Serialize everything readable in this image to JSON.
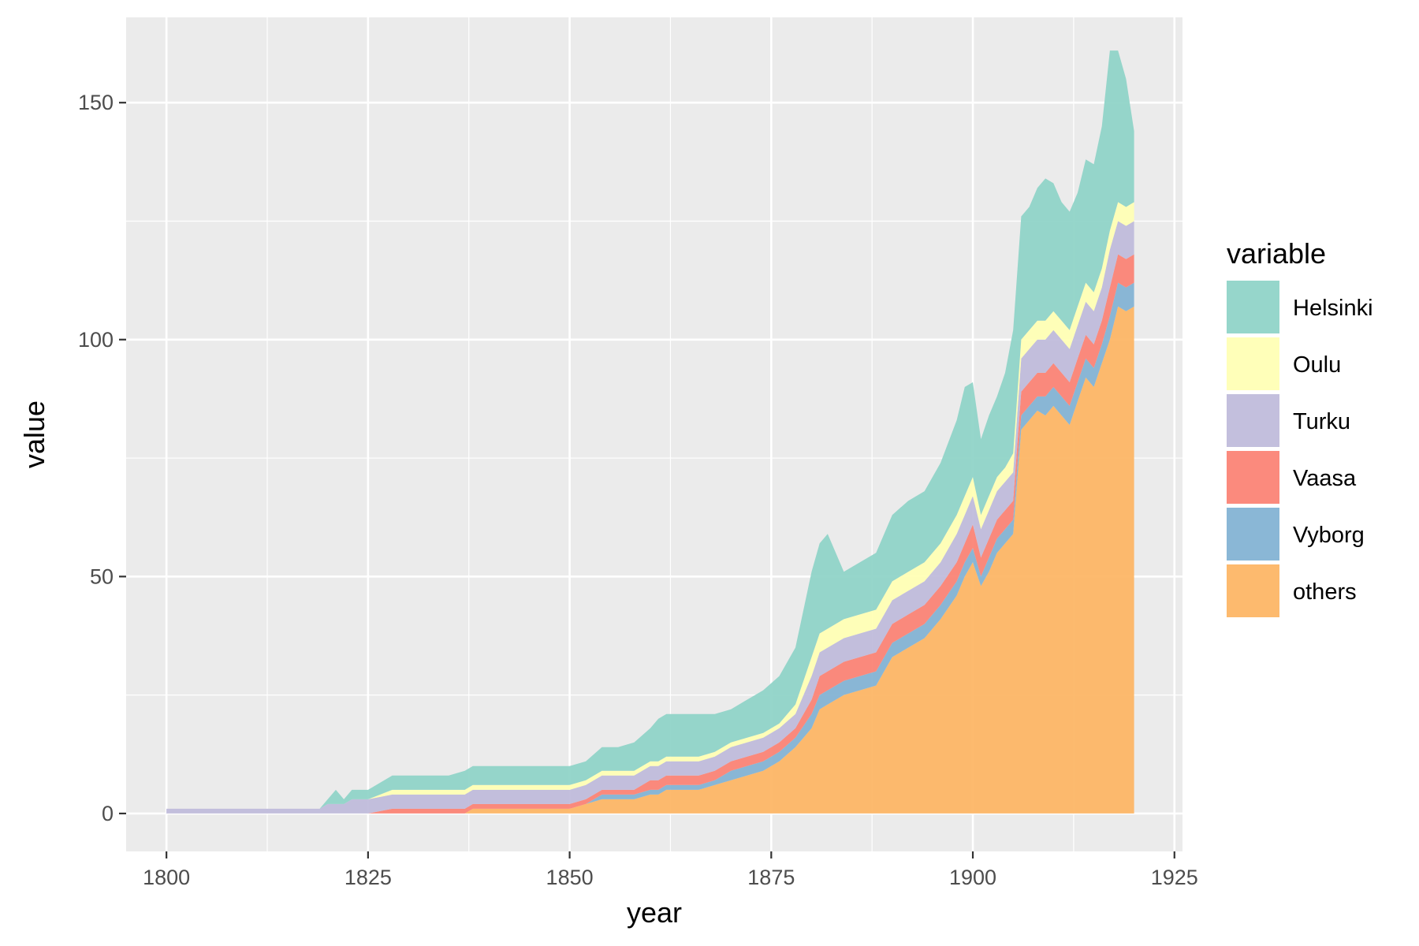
{
  "chart_data": {
    "type": "area",
    "stacking": "stacked",
    "xlabel": "year",
    "ylabel": "value",
    "xlim": [
      1795,
      1926
    ],
    "ylim": [
      -8,
      168
    ],
    "x_ticks": [
      1800,
      1825,
      1850,
      1875,
      1900,
      1925
    ],
    "y_ticks": [
      0,
      50,
      100,
      150
    ],
    "grid": true,
    "legend": {
      "title": "variable",
      "position": "right"
    },
    "stack_order_top_to_bottom": [
      "Helsinki",
      "Oulu",
      "Turku",
      "Vaasa",
      "Vyborg",
      "others"
    ],
    "colors": {
      "Helsinki": "#8dd3c7",
      "Oulu": "#ffffb3",
      "Turku": "#bebada",
      "Vaasa": "#fb8072",
      "Vyborg": "#80b1d3",
      "others": "#fdb462"
    },
    "x": [
      1800,
      1805,
      1810,
      1815,
      1819,
      1820,
      1821,
      1822,
      1823,
      1825,
      1828,
      1830,
      1833,
      1835,
      1837,
      1838,
      1840,
      1842,
      1844,
      1846,
      1848,
      1850,
      1852,
      1854,
      1856,
      1858,
      1860,
      1861,
      1862,
      1864,
      1866,
      1868,
      1870,
      1872,
      1874,
      1876,
      1878,
      1880,
      1881,
      1882,
      1884,
      1886,
      1888,
      1890,
      1892,
      1894,
      1896,
      1898,
      1899,
      1900,
      1901,
      1902,
      1903,
      1904,
      1905,
      1906,
      1907,
      1908,
      1909,
      1910,
      1911,
      1912,
      1913,
      1914,
      1915,
      1916,
      1917,
      1918,
      1919,
      1920
    ],
    "series": [
      {
        "name": "others",
        "values": [
          0,
          0,
          0,
          0,
          0,
          0,
          0,
          0,
          0,
          0,
          0,
          0,
          0,
          0,
          0,
          1,
          1,
          1,
          1,
          1,
          1,
          1,
          2,
          3,
          3,
          3,
          4,
          4,
          5,
          5,
          5,
          6,
          7,
          8,
          9,
          11,
          14,
          18,
          22,
          23,
          25,
          26,
          27,
          33,
          35,
          37,
          41,
          46,
          50,
          53,
          48,
          51,
          55,
          57,
          59,
          81,
          83,
          85,
          84,
          86,
          84,
          82,
          87,
          92,
          90,
          95,
          100,
          107,
          106,
          107
        ]
      },
      {
        "name": "Vyborg",
        "values": [
          0,
          0,
          0,
          0,
          0,
          0,
          0,
          0,
          0,
          0,
          0,
          0,
          0,
          0,
          0,
          0,
          0,
          0,
          0,
          0,
          0,
          0,
          0,
          1,
          1,
          1,
          1,
          1,
          1,
          1,
          1,
          1,
          2,
          2,
          2,
          2,
          2,
          3,
          3,
          3,
          3,
          3,
          3,
          3,
          3,
          3,
          3,
          3,
          3,
          3,
          2,
          3,
          3,
          3,
          3,
          3,
          3,
          3,
          4,
          4,
          4,
          4,
          4,
          4,
          4,
          4,
          5,
          5,
          5,
          5
        ]
      },
      {
        "name": "Vaasa",
        "values": [
          0,
          0,
          0,
          0,
          0,
          0,
          0,
          0,
          0,
          0,
          1,
          1,
          1,
          1,
          1,
          1,
          1,
          1,
          1,
          1,
          1,
          1,
          1,
          1,
          1,
          1,
          2,
          2,
          2,
          2,
          2,
          2,
          2,
          2,
          2,
          2,
          2,
          3,
          4,
          4,
          4,
          4,
          4,
          4,
          4,
          4,
          4,
          4,
          4,
          5,
          4,
          4,
          4,
          4,
          4,
          5,
          5,
          5,
          5,
          5,
          5,
          5,
          5,
          5,
          5,
          5,
          6,
          6,
          6,
          6
        ]
      },
      {
        "name": "Turku",
        "values": [
          1,
          1,
          1,
          1,
          1,
          2,
          2,
          2,
          3,
          3,
          3,
          3,
          3,
          3,
          3,
          3,
          3,
          3,
          3,
          3,
          3,
          3,
          3,
          3,
          3,
          3,
          3,
          3,
          3,
          3,
          3,
          3,
          3,
          3,
          3,
          3,
          3,
          5,
          5,
          5,
          5,
          5,
          5,
          5,
          5,
          5,
          5,
          6,
          6,
          6,
          6,
          6,
          6,
          6,
          6,
          7,
          7,
          7,
          7,
          7,
          7,
          7,
          7,
          7,
          7,
          7,
          8,
          7,
          7,
          7
        ]
      },
      {
        "name": "Oulu",
        "values": [
          0,
          0,
          0,
          0,
          0,
          0,
          0,
          0,
          0,
          0,
          1,
          1,
          1,
          1,
          1,
          1,
          1,
          1,
          1,
          1,
          1,
          1,
          1,
          1,
          1,
          1,
          1,
          1,
          1,
          1,
          1,
          1,
          1,
          1,
          1,
          1,
          2,
          4,
          4,
          4,
          4,
          4,
          4,
          4,
          4,
          4,
          4,
          4,
          4,
          4,
          3,
          3,
          3,
          3,
          4,
          4,
          4,
          4,
          4,
          4,
          4,
          4,
          4,
          4,
          4,
          4,
          4,
          4,
          4,
          4
        ]
      },
      {
        "name": "Helsinki",
        "values": [
          0,
          0,
          0,
          0,
          0,
          1,
          3,
          1,
          2,
          2,
          3,
          3,
          3,
          3,
          4,
          4,
          4,
          4,
          4,
          4,
          4,
          4,
          4,
          5,
          5,
          6,
          7,
          9,
          9,
          9,
          9,
          8,
          7,
          8,
          9,
          10,
          12,
          18,
          19,
          20,
          10,
          11,
          12,
          14,
          15,
          15,
          17,
          20,
          23,
          20,
          16,
          17,
          17,
          20,
          26,
          26,
          26,
          28,
          30,
          27,
          25,
          25,
          24,
          26,
          27,
          30,
          38,
          32,
          27,
          15
        ]
      }
    ]
  }
}
